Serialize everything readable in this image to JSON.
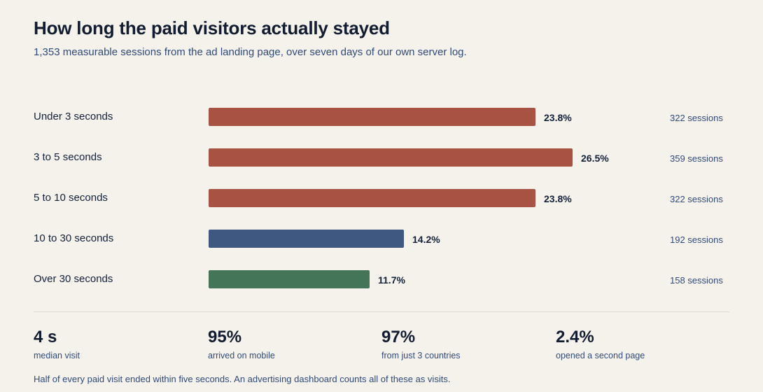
{
  "title": "How long the paid visitors actually stayed",
  "subtitle": "1,353 measurable sessions from the ad landing page, over seven days of our own server log.",
  "chart_data": {
    "type": "bar",
    "orientation": "horizontal",
    "categories": [
      "Under 3 seconds",
      "3 to 5 seconds",
      "5 to 10 seconds",
      "10 to 30 seconds",
      "Over 30 seconds"
    ],
    "values": [
      23.8,
      26.5,
      23.8,
      14.2,
      11.7
    ],
    "value_labels": [
      "23.8%",
      "26.5%",
      "23.8%",
      "14.2%",
      "11.7%"
    ],
    "counts": [
      322,
      359,
      322,
      192,
      158
    ],
    "count_labels": [
      "322 sessions",
      "359 sessions",
      "322 sessions",
      "192 sessions",
      "158 sessions"
    ],
    "colors": [
      "#a85244",
      "#a85244",
      "#a85244",
      "#3f5882",
      "#447559"
    ],
    "xlim": [
      0,
      26.5
    ],
    "grid": false
  },
  "stats": [
    {
      "value": "4 s",
      "label": "median visit"
    },
    {
      "value": "95%",
      "label": "arrived on mobile"
    },
    {
      "value": "97%",
      "label": "from just 3 countries"
    },
    {
      "value": "2.4%",
      "label": "opened a second page"
    }
  ],
  "footnote": "Half of every paid visit ended within five seconds. An advertising dashboard counts all of these as visits."
}
